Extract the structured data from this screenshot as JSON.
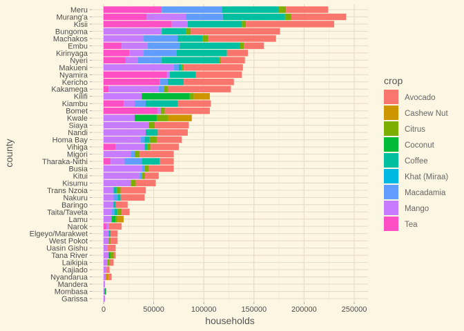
{
  "chart_data": {
    "type": "bar",
    "orientation": "horizontal",
    "stacked": true,
    "title": "",
    "xlabel": "households",
    "ylabel": "county",
    "xlim": [
      0,
      260000
    ],
    "xticks": [
      0,
      50000,
      100000,
      150000,
      200000,
      250000
    ],
    "xtick_labels": [
      "0",
      "50000",
      "100000",
      "150000",
      "200000",
      "250000"
    ],
    "grid": true,
    "legend_position": "right",
    "legend_title": "crop",
    "categories": [
      "Meru",
      "Murang'a",
      "Kisii",
      "Bungoma",
      "Machakos",
      "Embu",
      "Kirinyaga",
      "Nyeri",
      "Makueni",
      "Nyamira",
      "Kericho",
      "Kakamega",
      "Kilifi",
      "Kiambu",
      "Bomet",
      "Kwale",
      "Siaya",
      "Nandi",
      "Homa Bay",
      "Vihiga",
      "Migori",
      "Tharaka-Nithi",
      "Busia",
      "Kitui",
      "Kisumu",
      "Trans Nzoia",
      "Nakuru",
      "Baringo",
      "Taita/Taveta",
      "Lamu",
      "Narok",
      "Elgeyo/Marakwet",
      "West Pokot",
      "Uasin Gishu",
      "Tana River",
      "Laikipia",
      "Kajiado",
      "Nyandarua",
      "Mandera",
      "Mombasa",
      "Garissa"
    ],
    "series": [
      {
        "name": "Tea",
        "color": "#FF4FC4",
        "values": [
          58000,
          43000,
          68000,
          0,
          0,
          18000,
          26000,
          22000,
          0,
          63000,
          56000,
          5000,
          0,
          20000,
          54000,
          0,
          0,
          0,
          0,
          12000,
          0,
          7000,
          0,
          0,
          0,
          0,
          0,
          0,
          0,
          0,
          3000,
          0,
          0,
          0,
          0,
          0,
          0,
          0,
          0,
          0,
          0
        ]
      },
      {
        "name": "Mango",
        "color": "#C77CFF",
        "values": [
          0,
          39000,
          16000,
          58000,
          40000,
          26000,
          14000,
          12000,
          70000,
          3000,
          0,
          50000,
          38000,
          11000,
          3000,
          31000,
          45000,
          42000,
          37000,
          29000,
          27000,
          14000,
          38000,
          36000,
          27000,
          10000,
          10000,
          10000,
          8000,
          8000,
          2000,
          5000,
          5000,
          4000,
          5000,
          4000,
          3000,
          2000,
          1500,
          1000,
          1500
        ]
      },
      {
        "name": "Macadamia",
        "color": "#619CFF",
        "values": [
          60000,
          37000,
          0,
          0,
          34000,
          32000,
          33000,
          24000,
          5000,
          0,
          8000,
          5000,
          0,
          11000,
          0,
          0,
          0,
          0,
          4000,
          0,
          4000,
          17000,
          3000,
          2000,
          0,
          0,
          4000,
          0,
          3000,
          0,
          0,
          0,
          0,
          0,
          0,
          0,
          0,
          0,
          0,
          0,
          0
        ]
      },
      {
        "name": "Khat (Miraa)",
        "color": "#00B9E3",
        "values": [
          0,
          0,
          0,
          0,
          0,
          0,
          0,
          0,
          0,
          0,
          0,
          0,
          0,
          0,
          0,
          0,
          0,
          0,
          0,
          0,
          0,
          0,
          0,
          0,
          0,
          0,
          0,
          0,
          0,
          0,
          0,
          0,
          0,
          0,
          0,
          0,
          0,
          0,
          0,
          0,
          0
        ]
      },
      {
        "name": "Coffee",
        "color": "#00BFA0",
        "values": [
          57000,
          62000,
          54000,
          24000,
          25000,
          60000,
          50000,
          57000,
          3000,
          26000,
          16000,
          0,
          0,
          32000,
          0,
          0,
          0,
          12000,
          5000,
          3000,
          0,
          18000,
          0,
          0,
          0,
          3000,
          3000,
          2000,
          3000,
          0,
          0,
          2000,
          0,
          0,
          0,
          0,
          0,
          0,
          0,
          0,
          0
        ]
      },
      {
        "name": "Coconut",
        "color": "#00BA38",
        "values": [
          0,
          0,
          0,
          0,
          0,
          0,
          0,
          0,
          0,
          0,
          0,
          0,
          48000,
          0,
          0,
          22000,
          0,
          0,
          0,
          0,
          0,
          0,
          0,
          0,
          0,
          0,
          0,
          0,
          0,
          4000,
          0,
          0,
          0,
          0,
          2000,
          0,
          0,
          0,
          0,
          1500,
          0
        ]
      },
      {
        "name": "Citrus",
        "color": "#7CAE00",
        "values": [
          7000,
          6000,
          4000,
          5000,
          5000,
          4000,
          0,
          2000,
          2000,
          0,
          0,
          4000,
          4000,
          0,
          4000,
          11000,
          6000,
          0,
          7000,
          3000,
          5000,
          0,
          4000,
          3000,
          5000,
          4000,
          0,
          0,
          4000,
          2000,
          0,
          0,
          2000,
          0,
          3000,
          2000,
          0,
          0,
          0,
          0,
          0
        ]
      },
      {
        "name": "Cashew Nut",
        "color": "#CD9600",
        "values": [
          0,
          0,
          0,
          0,
          0,
          0,
          0,
          0,
          0,
          0,
          0,
          0,
          16000,
          0,
          0,
          24000,
          0,
          0,
          0,
          0,
          0,
          0,
          0,
          0,
          0,
          0,
          0,
          0,
          0,
          6000,
          0,
          0,
          0,
          0,
          0,
          0,
          0,
          3000,
          0,
          0,
          0
        ]
      },
      {
        "name": "Avocado",
        "color": "#F8766D",
        "values": [
          42000,
          55000,
          88000,
          89000,
          68000,
          20000,
          21000,
          24000,
          59000,
          46000,
          50000,
          63000,
          0,
          33000,
          45000,
          0,
          34000,
          30000,
          25000,
          28000,
          34000,
          14000,
          25000,
          14000,
          20000,
          25000,
          24000,
          12000,
          8000,
          0,
          13000,
          7000,
          7000,
          8000,
          2000,
          4000,
          3000,
          3000,
          0,
          0,
          0
        ]
      }
    ]
  }
}
